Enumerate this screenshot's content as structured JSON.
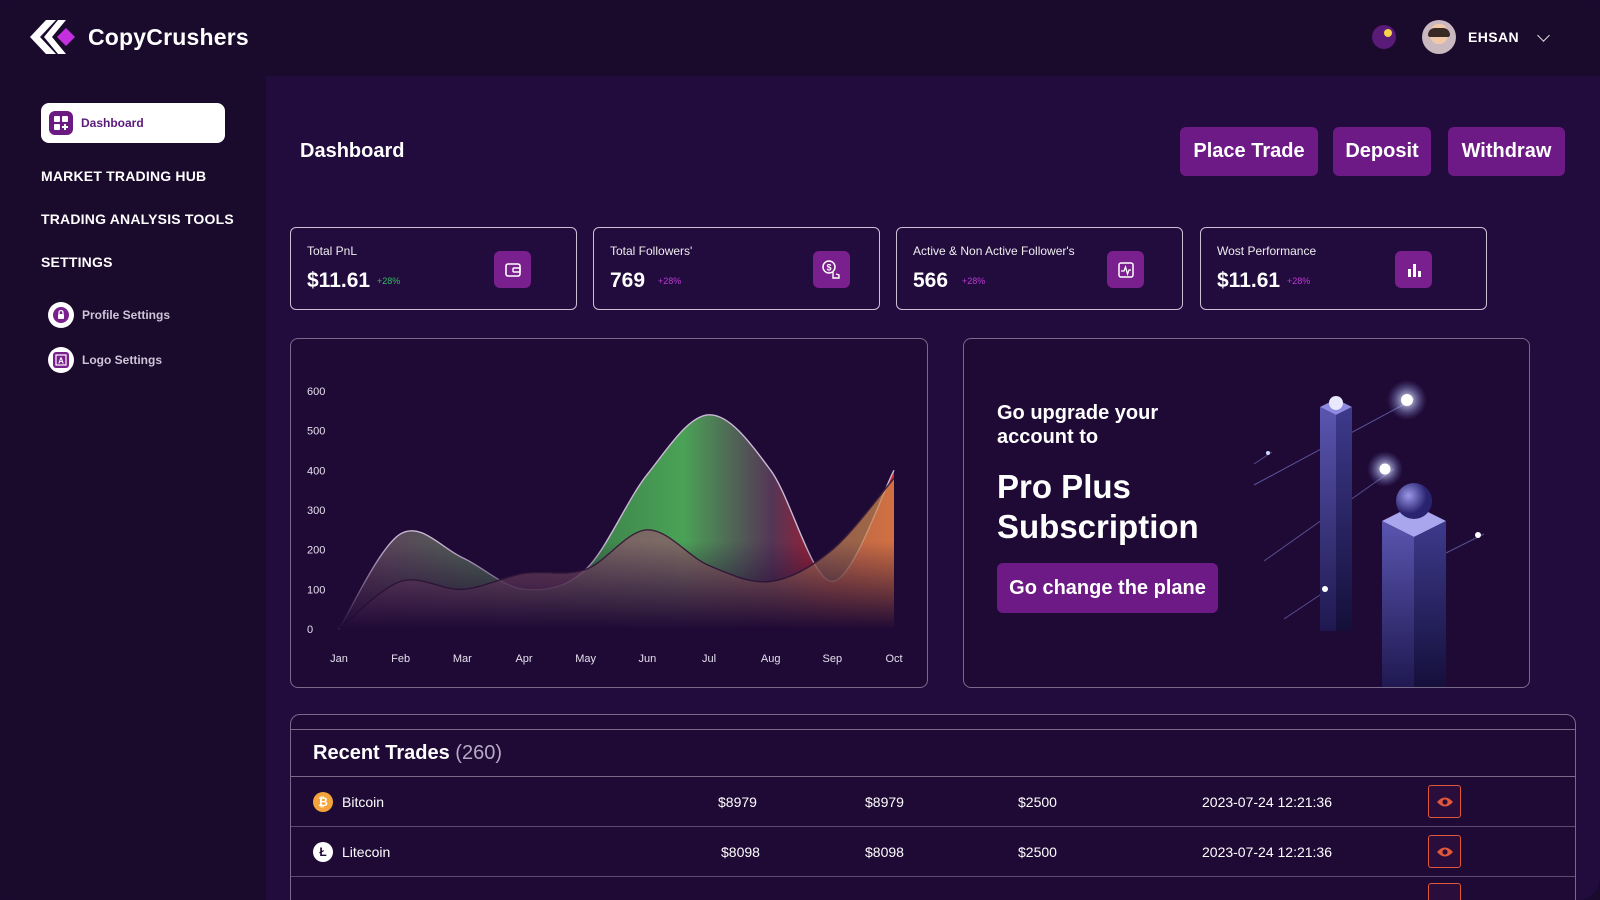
{
  "app": {
    "name": "CopyCrushers"
  },
  "header": {
    "user_name": "EHSAN"
  },
  "sidebar": {
    "active": "Dashboard",
    "sections": [
      "MARKET TRADING HUB",
      "TRADING ANALYSIS TOOLS",
      "SETTINGS"
    ],
    "sub_items": [
      "Profile Settings",
      "Logo Settings"
    ]
  },
  "page": {
    "title": "Dashboard",
    "actions": [
      "Place Trade",
      "Deposit",
      "Withdraw"
    ]
  },
  "stats": [
    {
      "title": "Total PnL",
      "value": "$11.61",
      "change": "+28%",
      "change_color": "#2fbf5f",
      "icon": "wallet-icon"
    },
    {
      "title": "Total Followers'",
      "value": "769",
      "change": "+28%",
      "change_color": "#c03ad8",
      "icon": "dollar-hand-icon"
    },
    {
      "title": "Active & Non Active Follower's",
      "value": "566",
      "change": "+28%",
      "change_color": "#c03ad8",
      "icon": "activity-chart-icon"
    },
    {
      "title": "Wost Performance",
      "value": "$11.61",
      "change": "+28%",
      "change_color": "#c03ad8",
      "icon": "bar-chart-icon"
    }
  ],
  "chart_data": {
    "type": "area",
    "categories": [
      "Jan",
      "Feb",
      "Mar",
      "Apr",
      "May",
      "Jun",
      "Jul",
      "Aug",
      "Sep",
      "Oct"
    ],
    "y_ticks": [
      "600",
      "500",
      "400",
      "300",
      "200",
      "100",
      "0"
    ],
    "ylim": [
      0,
      600
    ],
    "series": [
      {
        "values": [
          0,
          240,
          180,
          100,
          150,
          390,
          540,
          400,
          120,
          400
        ],
        "colors": [
          "#4fb35a",
          "#e01b2a"
        ]
      },
      {
        "values": [
          0,
          120,
          100,
          140,
          150,
          250,
          160,
          120,
          200,
          380
        ],
        "colors": [
          "#8a4a6a",
          "#c9784a"
        ]
      }
    ]
  },
  "promo": {
    "line1": "Go upgrade your account to",
    "line2": "Pro Plus Subscription",
    "cta": "Go change the plane"
  },
  "recent_trades": {
    "title": "Recent Trades",
    "count": "(260)",
    "rows": [
      {
        "coin": "Bitcoin",
        "symbol": "₿",
        "color": "#f4a43a",
        "c1": "$8979",
        "c2": "$8979",
        "c3": "$2500",
        "date": "2023-07-24 12:21:36"
      },
      {
        "coin": "Litecoin",
        "symbol": "Ł",
        "color": "#ffffff",
        "c1": "$8098",
        "c2": "$8098",
        "c3": "$2500",
        "date": "2023-07-24 12:21:36"
      }
    ]
  }
}
